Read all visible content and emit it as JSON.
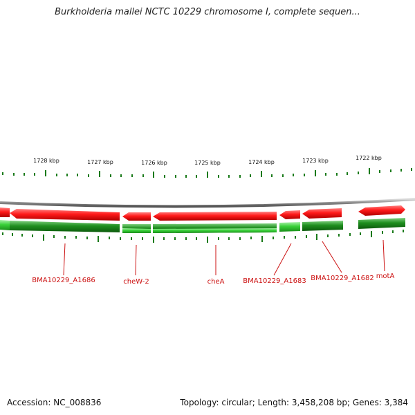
{
  "title": "Burkholderia mallei NCTC 10229 chromosome I, complete sequen...",
  "footer": {
    "accession": "Accession: NC_008836",
    "topology": "Topology: circular; Length: 3,458,208 bp; Genes: 3,384"
  },
  "colors": {
    "forward_gene": "#e01010",
    "reverse_gene": "#1a8a1a",
    "reverse_gene_light": "#3ccc3c",
    "backbone": "#888888",
    "ticks": "#1a7a1a",
    "label": "#cc1111"
  },
  "kbp_labels": [
    "1728 kbp",
    "1727 kbp",
    "1726 kbp",
    "1725 kbp",
    "1724 kbp",
    "1723 kbp",
    "1722 kbp"
  ],
  "gene_labels": [
    "BMA10229_A1686",
    "cheW-2",
    "cheA",
    "BMA10229_A1683",
    "BMA10229_A1682",
    "motA"
  ]
}
